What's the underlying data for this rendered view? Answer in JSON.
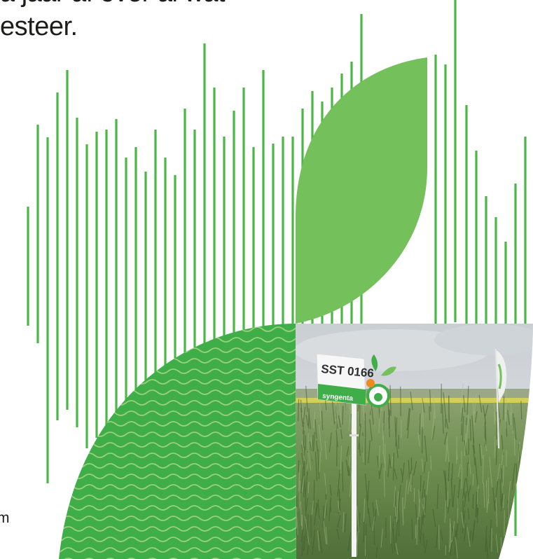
{
  "heading": {
    "line1": "a jaar af over al wat",
    "line2": "esteer."
  },
  "footer_fragment": "m",
  "sign": {
    "code": "SST 0166",
    "brand": "syngenta"
  },
  "colors": {
    "stripe_green": "#4cb748",
    "leaf_light": "#74c05a",
    "leaf_dark": "#3fae49",
    "wave": "#9ad17a",
    "text": "#1d1d1b"
  }
}
